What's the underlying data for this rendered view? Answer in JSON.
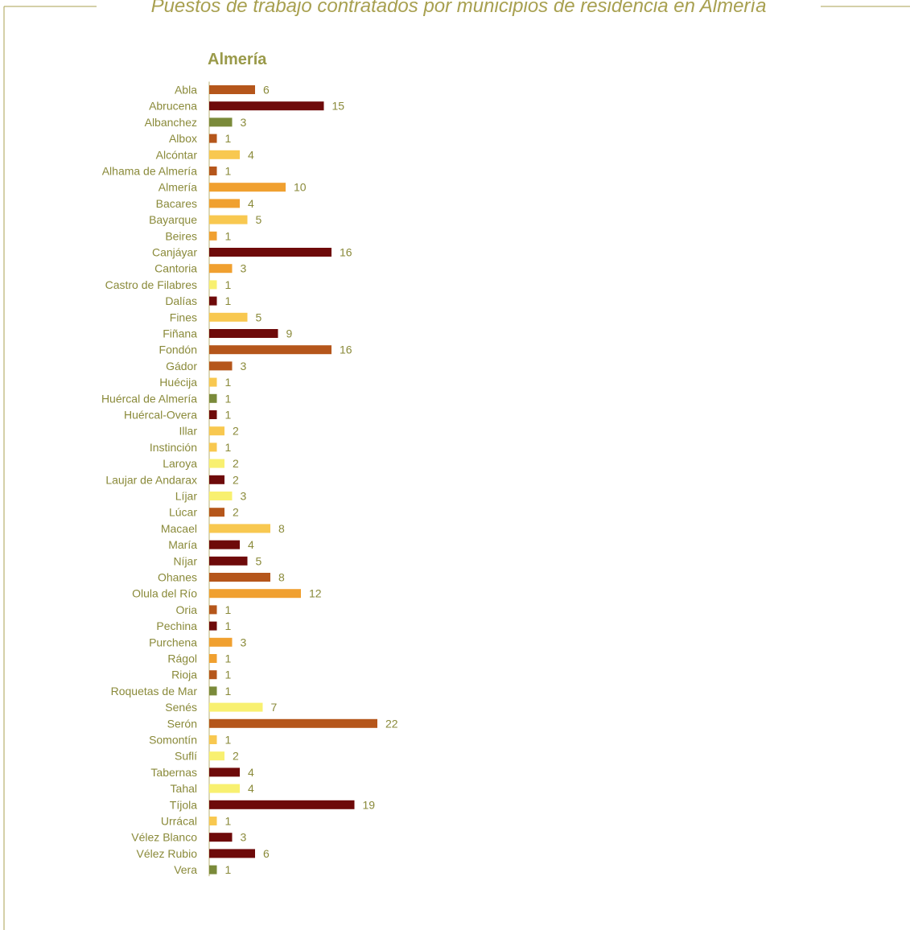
{
  "header": {
    "title": "Puestos de trabajo contratados por municipios de residencia en Almería"
  },
  "colors": {
    "frame": "#a8a050",
    "title": "#9a9a4a",
    "label": "#8a8a3a",
    "value": "#8a8a3a",
    "axis": "#b8b070",
    "palette": {
      "rust": "#b5561b",
      "maroon": "#6e0a0a",
      "olive": "#7a8a3a",
      "orange": "#f0a030",
      "gold": "#f8c850",
      "yellow": "#f8f070"
    }
  },
  "chart_data": {
    "type": "bar",
    "orientation": "horizontal",
    "title": "Almería",
    "categories": [
      "Abla",
      "Abrucena",
      "Albanchez",
      "Albox",
      "Alcóntar",
      "Alhama de Almería",
      "Almería",
      "Bacares",
      "Bayarque",
      "Beires",
      "Canjáyar",
      "Cantoria",
      "Castro de Filabres",
      "Dalías",
      "Fines",
      "Fiñana",
      "Fondón",
      "Gádor",
      "Huécija",
      "Huércal de Almería",
      "Huércal-Overa",
      "Illar",
      "Instinción",
      "Laroya",
      "Laujar de Andarax",
      "Líjar",
      "Lúcar",
      "Macael",
      "María",
      "Níjar",
      "Ohanes",
      "Olula del Río",
      "Oria",
      "Pechina",
      "Purchena",
      "Rágol",
      "Rioja",
      "Roquetas de Mar",
      "Senés",
      "Serón",
      "Somontín",
      "Suflí",
      "Tabernas",
      "Tahal",
      "Tíjola",
      "Urrácal",
      "Vélez Blanco",
      "Vélez Rubio",
      "Vera"
    ],
    "values": [
      6,
      15,
      3,
      1,
      4,
      1,
      10,
      4,
      5,
      1,
      16,
      3,
      1,
      1,
      5,
      9,
      16,
      3,
      1,
      1,
      1,
      2,
      1,
      2,
      2,
      3,
      2,
      8,
      4,
      5,
      8,
      12,
      1,
      1,
      3,
      1,
      1,
      1,
      7,
      22,
      1,
      2,
      4,
      4,
      19,
      1,
      3,
      6,
      1
    ],
    "bar_colors": [
      "rust",
      "maroon",
      "olive",
      "rust",
      "gold",
      "rust",
      "orange",
      "orange",
      "gold",
      "orange",
      "maroon",
      "orange",
      "yellow",
      "maroon",
      "gold",
      "maroon",
      "rust",
      "rust",
      "gold",
      "olive",
      "maroon",
      "gold",
      "gold",
      "yellow",
      "maroon",
      "yellow",
      "rust",
      "gold",
      "maroon",
      "maroon",
      "rust",
      "orange",
      "rust",
      "maroon",
      "orange",
      "orange",
      "rust",
      "olive",
      "yellow",
      "rust",
      "gold",
      "yellow",
      "maroon",
      "yellow",
      "maroon",
      "gold",
      "maroon",
      "maroon",
      "olive"
    ],
    "data_labels": true,
    "grid": false,
    "legend": "none"
  }
}
